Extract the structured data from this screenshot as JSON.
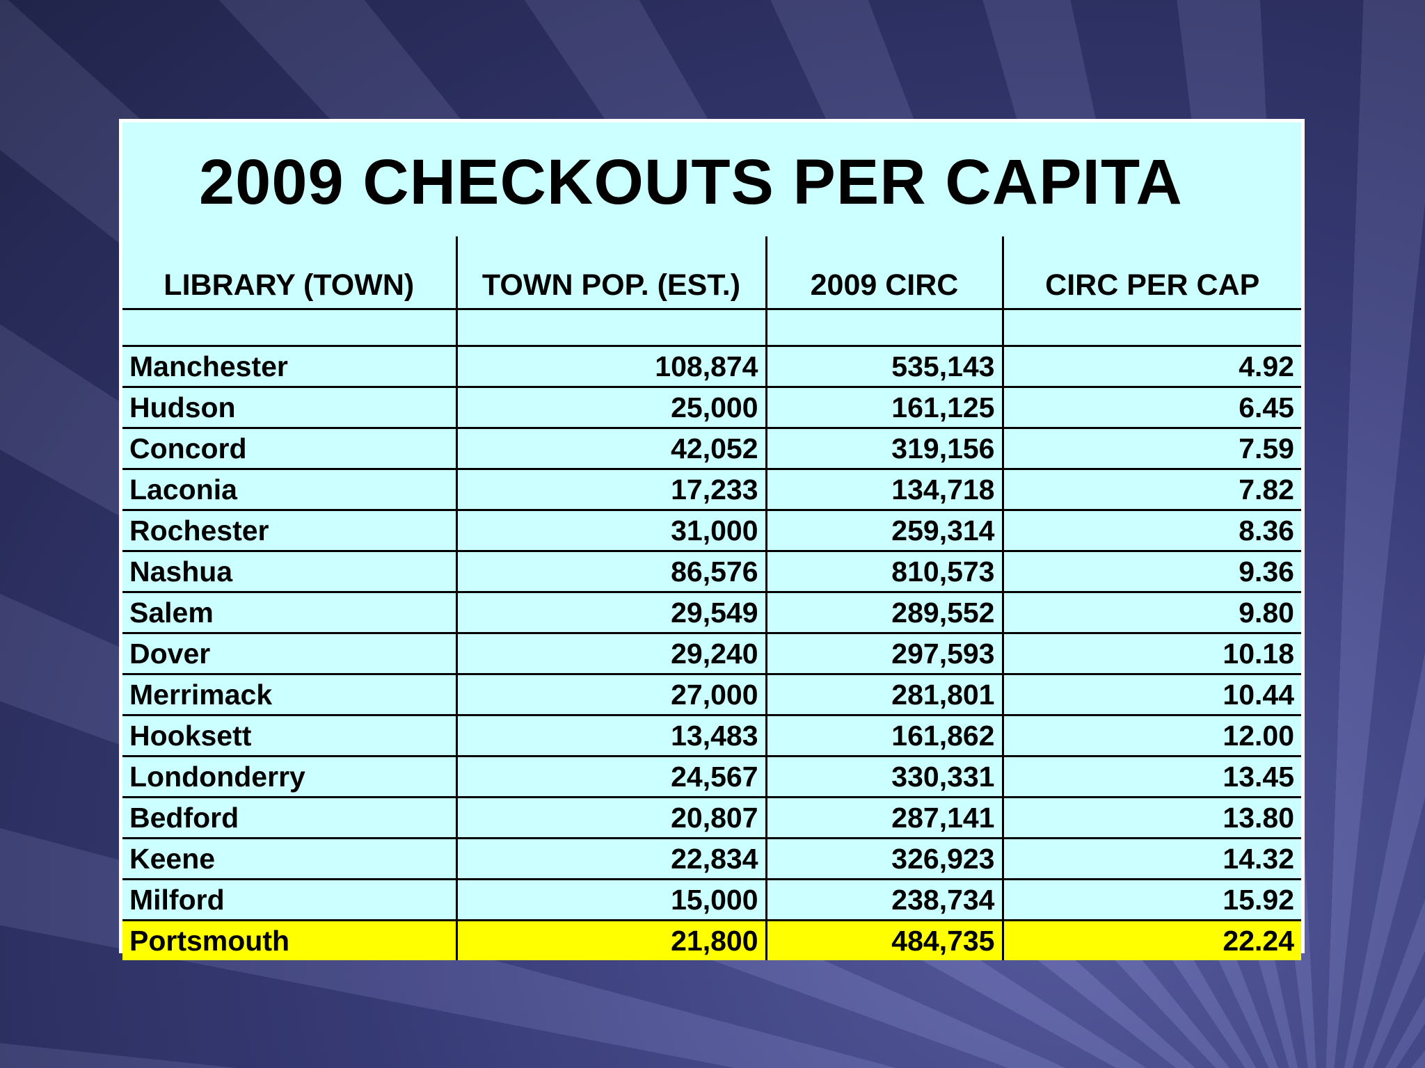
{
  "title": "2009 CHECKOUTS PER CAPITA",
  "table": {
    "headers": [
      "LIBRARY (TOWN)",
      "TOWN POP. (EST.)",
      "2009 CIRC",
      "CIRC PER CAP"
    ],
    "rows": [
      [
        "Manchester",
        "108,874",
        "535,143",
        "4.92"
      ],
      [
        "Hudson",
        "25,000",
        "161,125",
        "6.45"
      ],
      [
        "Concord",
        "42,052",
        "319,156",
        "7.59"
      ],
      [
        "Laconia",
        "17,233",
        "134,718",
        "7.82"
      ],
      [
        "Rochester",
        "31,000",
        "259,314",
        "8.36"
      ],
      [
        "Nashua",
        "86,576",
        "810,573",
        "9.36"
      ],
      [
        "Salem",
        "29,549",
        "289,552",
        "9.80"
      ],
      [
        "Dover",
        "29,240",
        "297,593",
        "10.18"
      ],
      [
        "Merrimack",
        "27,000",
        "281,801",
        "10.44"
      ],
      [
        "Hooksett",
        "13,483",
        "161,862",
        "12.00"
      ],
      [
        "Londonderry",
        "24,567",
        "330,331",
        "13.45"
      ],
      [
        "Bedford",
        "20,807",
        "287,141",
        "13.80"
      ],
      [
        "Keene",
        "22,834",
        "326,923",
        "14.32"
      ],
      [
        "Milford",
        "15,000",
        "238,734",
        "15.92"
      ],
      [
        "Portsmouth",
        "21,800",
        "484,735",
        "22.24"
      ]
    ]
  }
}
